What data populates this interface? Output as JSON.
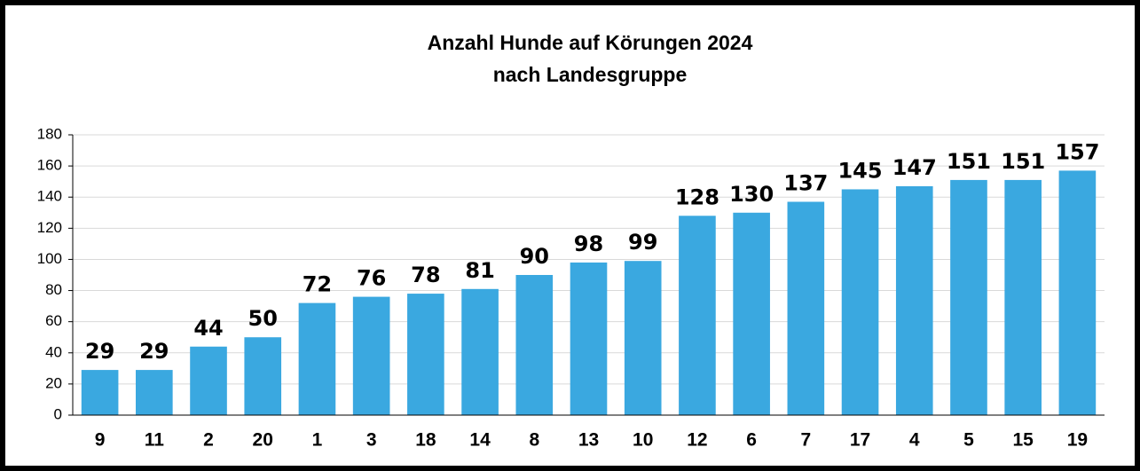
{
  "chart_data": {
    "type": "bar",
    "title": "Anzahl Hunde auf Körungen 2024",
    "subtitle": "nach Landesgruppe",
    "categories": [
      "9",
      "11",
      "2",
      "20",
      "1",
      "3",
      "18",
      "14",
      "8",
      "13",
      "10",
      "12",
      "6",
      "7",
      "17",
      "4",
      "5",
      "15",
      "19"
    ],
    "values": [
      29,
      29,
      44,
      50,
      72,
      76,
      78,
      81,
      90,
      98,
      99,
      128,
      130,
      137,
      145,
      147,
      151,
      151,
      157
    ],
    "color": "#3AA8E0",
    "ylim": [
      0,
      180
    ],
    "yticks": [
      0,
      20,
      40,
      60,
      80,
      100,
      120,
      140,
      160,
      180
    ],
    "grid": true
  }
}
